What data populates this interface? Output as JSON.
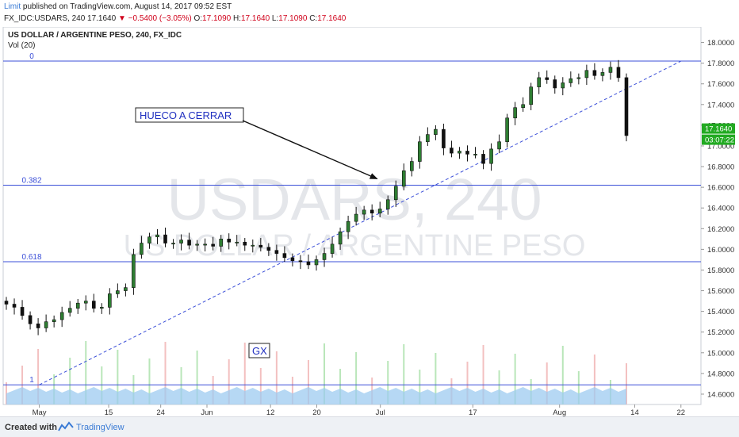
{
  "header": {
    "author": "Limit",
    "published": " published on TradingView.com, August 14, 2017 09:52 EST",
    "quote_main": "FX_IDC:USDARS, 240  17.1640 ",
    "change": "▼ −0.5400 (−3.05%)",
    "o_label": " O:",
    "o_value": "17.1090",
    "h_label": " H:",
    "h_value": "17.1640",
    "l_label": " L:",
    "l_value": "17.1090",
    "c_label": " C:",
    "c_value": "17.1640"
  },
  "footer": {
    "created_label": "Created with",
    "brand": "TradingView"
  },
  "chart_data": {
    "type": "candlestick",
    "title": "US DOLLAR / ARGENTINE PESO, 240, FX_IDC",
    "volume_label": "Vol (20)",
    "watermark_symbol": "USDARS, 240",
    "watermark_name": "US DOLLAR / ARGENTINE PESO",
    "ylim": [
      14.5,
      18.15
    ],
    "y_ticks": [
      "14.6000",
      "14.8000",
      "15.0000",
      "15.2000",
      "15.4000",
      "15.6000",
      "15.8000",
      "16.0000",
      "16.2000",
      "16.4000",
      "16.6000",
      "16.8000",
      "17.0000",
      "17.2000",
      "17.4000",
      "17.6000",
      "17.8000",
      "18.0000"
    ],
    "x_ticks": [
      "May",
      "15",
      "24",
      "Jun",
      "12",
      "20",
      "Jul",
      "17",
      "Aug",
      "14",
      "22"
    ],
    "last_price": "17.1640",
    "countdown": "03:07:22",
    "fib_levels": [
      {
        "label": "0",
        "price": 17.82
      },
      {
        "label": "0.382",
        "price": 16.62
      },
      {
        "label": "0.618",
        "price": 15.88
      },
      {
        "label": "1",
        "price": 14.69
      }
    ],
    "trendline": {
      "from": [
        "May 3",
        14.69
      ],
      "to": [
        "Aug 22",
        17.82
      ]
    },
    "annotations": [
      {
        "text": "HUECO A CERRAR",
        "arrow_to": [
          "Jul 1",
          16.62
        ]
      },
      {
        "text": "GX"
      }
    ],
    "colors": {
      "up": "#2e7d32",
      "down": "#111111",
      "fib": "#3b4fd8",
      "volume_area": "#9ecbf0",
      "last_price": "#22aa22"
    },
    "closes": [
      15.47,
      15.44,
      15.36,
      15.28,
      15.24,
      15.3,
      15.32,
      15.39,
      15.43,
      15.48,
      15.5,
      15.43,
      15.44,
      15.57,
      15.6,
      15.63,
      15.95,
      16.06,
      16.12,
      16.14,
      16.06,
      16.06,
      16.09,
      16.04,
      16.05,
      16.05,
      16.03,
      16.1,
      16.07,
      16.07,
      16.04,
      16.04,
      16.02,
      15.99,
      15.96,
      15.92,
      15.89,
      15.88,
      15.85,
      15.9,
      15.96,
      16.05,
      16.17,
      16.27,
      16.34,
      16.38,
      16.35,
      16.39,
      16.48,
      16.61,
      16.76,
      16.85,
      17.04,
      17.11,
      17.16,
      16.98,
      16.93,
      16.95,
      16.92,
      16.92,
      16.83,
      16.97,
      17.04,
      17.27,
      17.37,
      17.4,
      17.57,
      17.66,
      17.64,
      17.56,
      17.61,
      17.65,
      17.66,
      17.73,
      17.68,
      17.71,
      17.76,
      17.66,
      17.1
    ]
  }
}
